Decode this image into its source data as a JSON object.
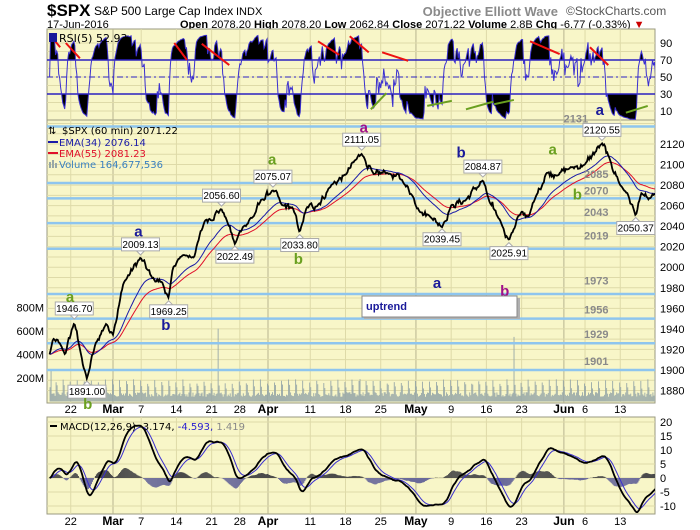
{
  "header": {
    "symbol": "$SPX",
    "name": "S&P 500 Large Cap Index",
    "exchange": "INDX",
    "watermark": "Objective Elliott Wave",
    "copyright": "©StockCharts.com",
    "date": "17-Jun-2016",
    "open_label": "Open",
    "open": "2078.20",
    "high_label": "High",
    "high": "2078.20",
    "low_label": "Low",
    "low": "2062.84",
    "close_label": "Close",
    "close": "2071.22",
    "volume_label": "Volume",
    "volume": "2.8B",
    "chg_label": "Chg",
    "chg": "-6.77 (-0.33%)",
    "chg_arrow": "▼"
  },
  "colors": {
    "plot_bg": "#f8f6c8",
    "grid": "#dedaa8",
    "price": "#000000",
    "ema34": "#1a1aa8",
    "ema55": "#e0102a",
    "volume": "#98a8a8",
    "level_line": "#8ec5ee",
    "rsi": "#3a2fd0",
    "macd_line": "#000000",
    "signal_line": "#3a2fd0",
    "hist_pos": "#4a4a4a",
    "hist_neg": "#6a6a9a",
    "red_trend": "#ee1111",
    "green_trend": "#6aa020",
    "wave_green": "#6aa020",
    "wave_navy": "#1a1a9a",
    "wave_purple": "#a0108a"
  },
  "legend": {
    "rsi": "RSI(5) 52.93",
    "price": "$SPX (60 min) 2071.22",
    "ema34": "EMA(34) 2076.14",
    "ema55": "EMA(55) 2081.23",
    "volume": "Volume 164,677,536",
    "macd_name": "MACD(12,26,9)",
    "macd_value": "-3.174,",
    "macd_signal": "-4.593,",
    "macd_hist": "1.419"
  },
  "trend_box": {
    "label": "uptrend"
  },
  "chart_data": {
    "type": "line",
    "title": "$SPX S&P 500 Large Cap Index (60 min)",
    "x_unit": "trading day index from 2016-02-17 (7 hourly bars per day)",
    "x_range": [
      0,
      86
    ],
    "x_ticks": [
      {
        "day": 3,
        "label": "22",
        "month": false
      },
      {
        "day": 9,
        "label": "Mar",
        "month": true
      },
      {
        "day": 13,
        "label": "7",
        "month": false
      },
      {
        "day": 18,
        "label": "14",
        "month": false
      },
      {
        "day": 23,
        "label": "21",
        "month": false
      },
      {
        "day": 27,
        "label": "28",
        "month": false
      },
      {
        "day": 31,
        "label": "Apr",
        "month": true
      },
      {
        "day": 37,
        "label": "11",
        "month": false
      },
      {
        "day": 42,
        "label": "18",
        "month": false
      },
      {
        "day": 47,
        "label": "25",
        "month": false
      },
      {
        "day": 52,
        "label": "May",
        "month": true
      },
      {
        "day": 57,
        "label": "9",
        "month": false
      },
      {
        "day": 62,
        "label": "16",
        "month": false
      },
      {
        "day": 67,
        "label": "23",
        "month": false
      },
      {
        "day": 73,
        "label": "Jun",
        "month": true
      },
      {
        "day": 76,
        "label": "6",
        "month": false
      },
      {
        "day": 81,
        "label": "13",
        "month": false
      }
    ],
    "price_axis": {
      "ticks": [
        "2120",
        "2100",
        "2080",
        "2060",
        "2040",
        "2020",
        "2000",
        "1980",
        "1960",
        "1940",
        "1920",
        "1900",
        "1880"
      ],
      "range": [
        1880,
        2140
      ]
    },
    "volume_axis": {
      "ticks": [
        "800M",
        "600M",
        "400M",
        "200M"
      ],
      "values_millions": [
        800,
        600,
        400,
        200
      ]
    },
    "rsi_axis": {
      "ticks": [
        "90",
        "70",
        "50",
        "30",
        "10"
      ],
      "overbought": 70,
      "oversold": 30
    },
    "macd_axis": {
      "ticks": [
        "20",
        "15",
        "10",
        "5",
        "0",
        "-5",
        "-10"
      ]
    },
    "price_pivots": [
      [
        0,
        1915
      ],
      [
        0.5,
        1930
      ],
      [
        1.5,
        1925
      ],
      [
        2.2,
        1915
      ],
      [
        3.5,
        1946.7
      ],
      [
        4.3,
        1920
      ],
      [
        5.3,
        1891
      ],
      [
        6.5,
        1925
      ],
      [
        8,
        1945
      ],
      [
        9,
        1935
      ],
      [
        10.5,
        1985
      ],
      [
        12.9,
        2009.13
      ],
      [
        14.5,
        1990
      ],
      [
        16,
        1985
      ],
      [
        16.9,
        1969.25
      ],
      [
        17.5,
        2000
      ],
      [
        19,
        2012
      ],
      [
        20.5,
        2010
      ],
      [
        22,
        2045
      ],
      [
        24.4,
        2056.6
      ],
      [
        25.2,
        2045
      ],
      [
        26.3,
        2022.49
      ],
      [
        27.5,
        2040
      ],
      [
        29,
        2050
      ],
      [
        30,
        2065
      ],
      [
        31.7,
        2075.07
      ],
      [
        33,
        2060
      ],
      [
        34.5,
        2058
      ],
      [
        35.5,
        2033.8
      ],
      [
        36.5,
        2058
      ],
      [
        38,
        2060
      ],
      [
        40,
        2080
      ],
      [
        42,
        2090
      ],
      [
        44.3,
        2111.05
      ],
      [
        46,
        2090
      ],
      [
        48,
        2092
      ],
      [
        50,
        2085
      ],
      [
        51.5,
        2070
      ],
      [
        52.5,
        2055
      ],
      [
        54,
        2050
      ],
      [
        55.7,
        2039.45
      ],
      [
        57,
        2060
      ],
      [
        59,
        2065
      ],
      [
        61.5,
        2084.87
      ],
      [
        62.5,
        2062
      ],
      [
        64,
        2045
      ],
      [
        65.2,
        2025.91
      ],
      [
        66.5,
        2050
      ],
      [
        68,
        2050
      ],
      [
        69,
        2068
      ],
      [
        70.5,
        2092
      ],
      [
        72,
        2090
      ],
      [
        74,
        2097
      ],
      [
        76,
        2100
      ],
      [
        78.4,
        2120.55
      ],
      [
        79.5,
        2105
      ],
      [
        81,
        2080
      ],
      [
        82,
        2072
      ],
      [
        83.2,
        2050.37
      ],
      [
        84,
        2072
      ],
      [
        85,
        2066
      ],
      [
        86,
        2071.22
      ]
    ],
    "price_labels": [
      {
        "day": 3.5,
        "value": "1946.70",
        "price": 1946.7,
        "kind": "high"
      },
      {
        "day": 5.3,
        "value": "1891.00",
        "price": 1891.0,
        "kind": "low"
      },
      {
        "day": 12.9,
        "value": "2009.13",
        "price": 2009.13,
        "kind": "high"
      },
      {
        "day": 16.9,
        "value": "1969.25",
        "price": 1969.25,
        "kind": "low"
      },
      {
        "day": 24.4,
        "value": "2056.60",
        "price": 2056.6,
        "kind": "high"
      },
      {
        "day": 26.3,
        "value": "2022.49",
        "price": 2022.49,
        "kind": "low"
      },
      {
        "day": 31.7,
        "value": "2075.07",
        "price": 2075.07,
        "kind": "high"
      },
      {
        "day": 35.5,
        "value": "2033.80",
        "price": 2033.8,
        "kind": "low"
      },
      {
        "day": 44.3,
        "value": "2111.05",
        "price": 2111.05,
        "kind": "high"
      },
      {
        "day": 55.7,
        "value": "2039.45",
        "price": 2039.45,
        "kind": "low"
      },
      {
        "day": 61.5,
        "value": "2084.87",
        "price": 2084.87,
        "kind": "high"
      },
      {
        "day": 65.2,
        "value": "2025.91",
        "price": 2025.91,
        "kind": "low"
      },
      {
        "day": 78.4,
        "value": "2120.55",
        "price": 2120.55,
        "kind": "high"
      },
      {
        "day": 83.2,
        "value": "2050.37",
        "price": 2050.37,
        "kind": "low"
      }
    ],
    "wave_labels": [
      {
        "text": "a",
        "color": "green",
        "day": 2.9,
        "price": 1966
      },
      {
        "text": "b",
        "color": "green",
        "day": 5.4,
        "price": 1862
      },
      {
        "text": "a",
        "color": "navy",
        "day": 12.6,
        "price": 2030
      },
      {
        "text": "b",
        "color": "navy",
        "day": 16.5,
        "price": 1939
      },
      {
        "text": "a",
        "color": "green",
        "day": 31.6,
        "price": 2100
      },
      {
        "text": "b",
        "color": "green",
        "day": 35.3,
        "price": 2003
      },
      {
        "text": "a",
        "color": "purple",
        "day": 44.6,
        "price": 2131
      },
      {
        "text": "a",
        "color": "navy",
        "day": 55.0,
        "price": 1980
      },
      {
        "text": "b",
        "color": "navy",
        "day": 58.4,
        "price": 2107
      },
      {
        "text": "b",
        "color": "purple",
        "day": 64.6,
        "price": 1972
      },
      {
        "text": "a",
        "color": "green",
        "day": 71.4,
        "price": 2110
      },
      {
        "text": "b",
        "color": "green",
        "day": 74.9,
        "price": 2066
      },
      {
        "text": "a",
        "color": "navy",
        "day": 78.1,
        "price": 2148
      }
    ],
    "level_lines": [
      2137,
      2082,
      2067,
      2043,
      2018,
      1974,
      1950,
      1926,
      1900
    ],
    "level_labels": [
      {
        "text": "2131",
        "price": 2141,
        "day": 74.7
      },
      {
        "text": "2085",
        "price": 2087,
        "day": 77.6
      },
      {
        "text": "2070",
        "price": 2071,
        "day": 77.6
      },
      {
        "text": "2043",
        "price": 2050,
        "day": 77.6
      },
      {
        "text": "2019",
        "price": 2027,
        "day": 77.6
      },
      {
        "text": "1973",
        "price": 1983,
        "day": 77.6
      },
      {
        "text": "1956",
        "price": 1955,
        "day": 77.6
      },
      {
        "text": "1929",
        "price": 1931,
        "day": 77.6
      },
      {
        "text": "1901",
        "price": 1905,
        "day": 77.6
      }
    ],
    "volume_spikes_millions": [
      [
        0.1,
        260
      ],
      [
        23.9,
        620
      ],
      [
        65.9,
        550
      ],
      [
        85.9,
        240
      ],
      [
        44,
        190
      ],
      [
        62.9,
        180
      ]
    ],
    "rsi_last": 52.93,
    "rsi_trendlines_red": [
      [
        [
          0,
          100
        ],
        [
          1.5,
          85
        ]
      ],
      [
        [
          2.3,
          90
        ],
        [
          4.3,
          72
        ]
      ],
      [
        [
          17.7,
          90
        ],
        [
          19.5,
          70
        ]
      ],
      [
        [
          21.6,
          89
        ],
        [
          25.5,
          64
        ]
      ],
      [
        [
          38.1,
          92
        ],
        [
          41.1,
          76
        ]
      ],
      [
        [
          42.6,
          98
        ],
        [
          45.3,
          79
        ]
      ],
      [
        [
          47.2,
          79
        ],
        [
          50.9,
          69
        ]
      ],
      [
        [
          68.2,
          92
        ],
        [
          72.4,
          77
        ]
      ],
      [
        [
          76.7,
          85
        ],
        [
          79.3,
          64
        ]
      ]
    ],
    "rsi_trendlines_green": [
      [
        [
          45.6,
          12
        ],
        [
          47.8,
          31
        ]
      ],
      [
        [
          53.6,
          16
        ],
        [
          57.1,
          22
        ]
      ],
      [
        [
          59.1,
          12
        ],
        [
          63,
          21
        ]
      ],
      [
        [
          63.1,
          18
        ],
        [
          65.9,
          23
        ]
      ],
      [
        [
          81.8,
          8
        ],
        [
          84.9,
          16
        ]
      ]
    ],
    "macd_last": {
      "macd": -3.174,
      "signal": -4.593,
      "histogram": 1.419
    },
    "ema34_last": 2076.14,
    "ema55_last": 2081.23
  }
}
